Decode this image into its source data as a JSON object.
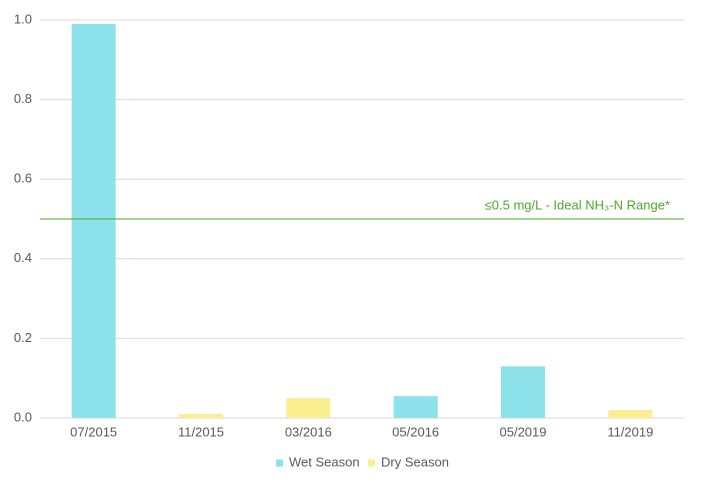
{
  "chart_data": {
    "type": "bar",
    "categories": [
      "07/2015",
      "11/2015",
      "03/2016",
      "05/2016",
      "05/2019",
      "11/2019"
    ],
    "series": [
      {
        "name": "Wet Season",
        "color": "#8ee2ec",
        "values": [
          0.99,
          null,
          null,
          0.055,
          0.13,
          null
        ]
      },
      {
        "name": "Dry Season",
        "color": "#fbee8e",
        "values": [
          null,
          0.01,
          0.05,
          null,
          null,
          0.02
        ]
      }
    ],
    "ylim": [
      0,
      1
    ],
    "yticks": [
      {
        "value": 0,
        "label": "0.0"
      },
      {
        "value": 0.2,
        "label": "0.2"
      },
      {
        "value": 0.4,
        "label": "0.4"
      },
      {
        "value": 0.6,
        "label": "0.6"
      },
      {
        "value": 0.8,
        "label": "0.8"
      },
      {
        "value": 1,
        "label": "1.0"
      }
    ],
    "grid": true,
    "reference_line": {
      "value": 0.5,
      "label": "≤0.5 mg/L - Ideal NH₃-N Range*",
      "color": "#4ea72a"
    },
    "legend": "bottom"
  }
}
